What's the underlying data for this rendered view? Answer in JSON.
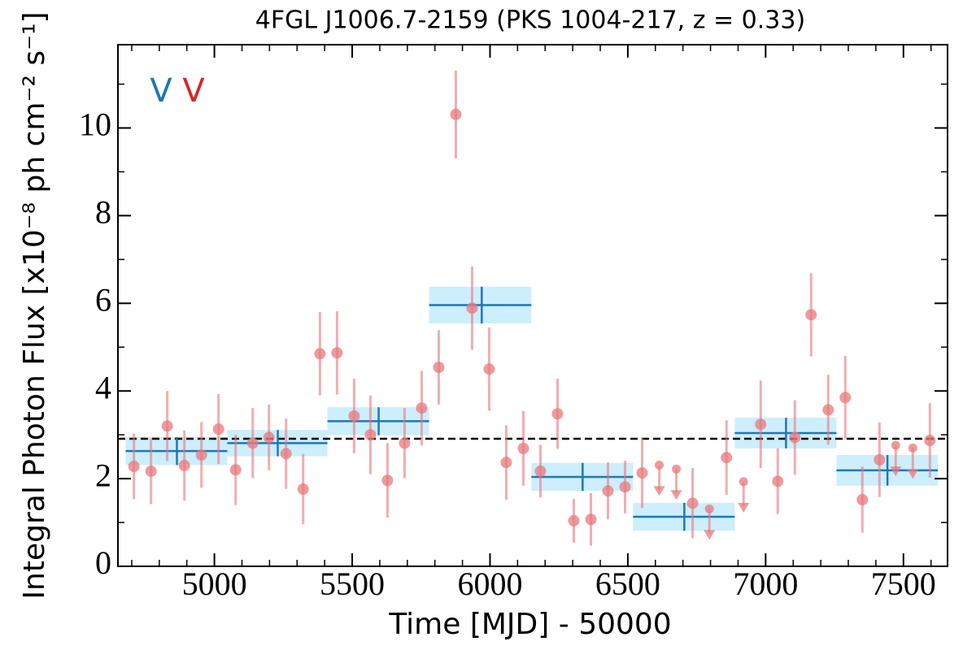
{
  "chart_data": {
    "type": "scatter",
    "title": "4FGL J1006.7-2159 (PKS 1004-217, z = 0.33)",
    "xlabel": "Time [MJD] - 50000",
    "ylabel": "Integral Photon Flux [x10⁻⁸ ph cm⁻² s⁻¹]",
    "xlim": [
      4650,
      7660
    ],
    "ylim": [
      0,
      11.9
    ],
    "xticks": [
      5000,
      5500,
      6000,
      6500,
      7000,
      7500
    ],
    "yticks": [
      0,
      2,
      4,
      6,
      8,
      10
    ],
    "xminorticks": [
      4700,
      4800,
      4900,
      5100,
      5200,
      5300,
      5400,
      5600,
      5700,
      5800,
      5900,
      6100,
      6200,
      6300,
      6400,
      6600,
      6700,
      6800,
      6900,
      7100,
      7200,
      7300,
      7400,
      7600
    ],
    "yminorticks": [
      1,
      3,
      5,
      7,
      9,
      11
    ],
    "points": {
      "color": "#e8787c",
      "x": [
        4708,
        4770,
        4829,
        4891,
        4953,
        5015,
        5077,
        5139,
        5198,
        5260,
        5322,
        5383,
        5445,
        5507,
        5566,
        5628,
        5690,
        5752,
        5814,
        5876,
        5935,
        5997,
        6059,
        6121,
        6183,
        6245,
        6304,
        6366,
        6428,
        6490,
        6552,
        6735,
        6858,
        6982,
        7044,
        7106,
        7165,
        7227,
        7289,
        7351,
        7413,
        7596
      ],
      "values": [
        2.28,
        2.17,
        3.2,
        2.3,
        2.54,
        3.13,
        2.2,
        2.81,
        2.94,
        2.57,
        1.76,
        4.85,
        4.87,
        3.43,
        3.0,
        1.96,
        2.81,
        3.61,
        4.54,
        10.31,
        5.89,
        4.5,
        2.37,
        2.69,
        2.17,
        3.48,
        1.04,
        1.07,
        1.72,
        1.81,
        2.13,
        1.44,
        2.48,
        3.24,
        1.94,
        2.94,
        5.74,
        3.57,
        3.85,
        1.52,
        2.43,
        2.87
      ],
      "errors": [
        0.75,
        0.75,
        0.8,
        0.8,
        0.75,
        0.8,
        0.8,
        0.8,
        0.75,
        0.8,
        0.8,
        0.95,
        0.95,
        0.85,
        0.9,
        0.85,
        0.8,
        0.85,
        0.85,
        1.0,
        0.95,
        0.95,
        0.85,
        0.85,
        0.6,
        0.8,
        0.5,
        0.6,
        0.65,
        0.6,
        0.8,
        0.8,
        0.85,
        1.0,
        0.75,
        0.85,
        0.95,
        0.8,
        0.95,
        0.75,
        0.85,
        0.85
      ]
    },
    "upper_limits": {
      "color": "#e8787c",
      "x": [
        6614,
        6676,
        6796,
        6920,
        7472,
        7534
      ],
      "values": [
        2.31,
        2.22,
        1.31,
        1.93,
        2.76,
        2.7
      ]
    },
    "blocks": {
      "color": "#1f77b4",
      "band_color": "#cdeefc",
      "start": [
        4678,
        5047,
        5410,
        5779,
        6150,
        6519,
        6888,
        7257
      ],
      "end": [
        5047,
        5410,
        5779,
        6150,
        6519,
        6888,
        7257,
        7625
      ],
      "center": [
        4864,
        5230,
        5596,
        5970,
        6336,
        6705,
        7074,
        7442
      ],
      "values": [
        2.63,
        2.81,
        3.31,
        5.96,
        2.04,
        1.13,
        3.04,
        2.19
      ],
      "errors": [
        0.32,
        0.3,
        0.32,
        0.42,
        0.32,
        0.32,
        0.35,
        0.35
      ]
    },
    "mean": {
      "value": 2.91,
      "color": "#000000"
    },
    "annotations": [
      {
        "text": "V",
        "color": "#1f77b4"
      },
      {
        "text": "V",
        "color": "#d62728"
      }
    ]
  }
}
